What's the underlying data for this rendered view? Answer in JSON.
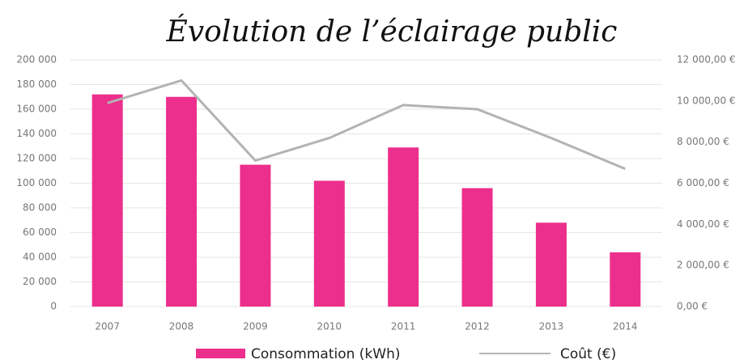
{
  "chart_data": {
    "type": "bar-line",
    "title": "Évolution de l’éclairage public",
    "categories": [
      "2007",
      "2008",
      "2009",
      "2010",
      "2011",
      "2012",
      "2013",
      "2014"
    ],
    "series": [
      {
        "name": "Consommation (kWh)",
        "color": "#ec2f8c",
        "type": "bar",
        "values": [
          172000,
          170000,
          115000,
          102000,
          129000,
          96000,
          68000,
          44000
        ]
      },
      {
        "name": "Coût (€)",
        "color": "#b3b3b3",
        "type": "line",
        "axis": "y2",
        "values": [
          9900,
          11000,
          7100,
          8200,
          9800,
          9600,
          8200,
          6700
        ]
      }
    ],
    "ylim": [
      0,
      200000
    ],
    "yticks": [
      0,
      {
        "value": 20000,
        "label": "20 000"
      },
      {
        "value": 40000,
        "label": "40 000"
      },
      {
        "value": 60000,
        "label": "60 000"
      },
      {
        "value": 80000,
        "label": "80 000"
      },
      {
        "value": 100000,
        "label": "100 000"
      },
      {
        "value": 120000,
        "label": "120 000"
      },
      {
        "value": 140000,
        "label": "140 000"
      },
      {
        "value": 160000,
        "label": "160 000"
      },
      {
        "value": 180000,
        "label": "180 000"
      },
      {
        "value": 200000,
        "label": "200 000"
      }
    ],
    "y2lim": [
      0,
      12000
    ],
    "y2ticks": [
      {
        "value": 0,
        "label": "0,00 €"
      },
      {
        "value": 2000,
        "label": "2 000,00 €"
      },
      {
        "value": 4000,
        "label": "4 000,00 €"
      },
      {
        "value": 6000,
        "label": "6 000,00 €"
      },
      {
        "value": 8000,
        "label": "8 000,00 €"
      },
      {
        "value": 10000,
        "label": "10 000,00 €"
      },
      {
        "value": 12000,
        "label": "12 000,00 €"
      }
    ],
    "grid": true,
    "legend": "bottom"
  }
}
